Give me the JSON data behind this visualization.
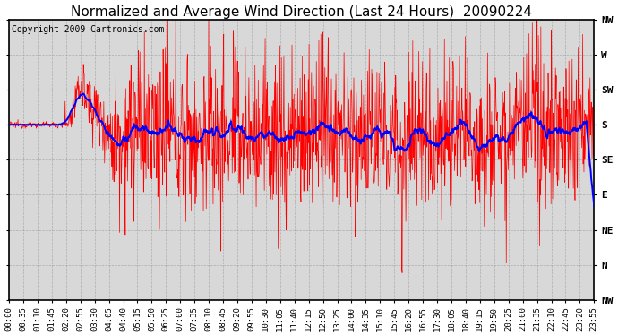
{
  "title": "Normalized and Average Wind Direction (Last 24 Hours)  20090224",
  "copyright_text": "Copyright 2009 Cartronics.com",
  "background_color": "#ffffff",
  "plot_bg_color": "#d8d8d8",
  "grid_color": "#999999",
  "ytick_labels": [
    "NW",
    "W",
    "SW",
    "S",
    "SE",
    "E",
    "NE",
    "N",
    "NW"
  ],
  "ytick_values": [
    360,
    315,
    270,
    225,
    180,
    135,
    90,
    45,
    0
  ],
  "ylim": [
    0,
    360
  ],
  "xtick_labels": [
    "00:00",
    "00:35",
    "01:10",
    "01:45",
    "02:20",
    "02:55",
    "03:30",
    "04:05",
    "04:40",
    "05:15",
    "05:50",
    "06:25",
    "07:00",
    "07:35",
    "08:10",
    "08:45",
    "09:20",
    "09:55",
    "10:30",
    "11:05",
    "11:40",
    "12:15",
    "12:50",
    "13:25",
    "14:00",
    "14:35",
    "15:10",
    "15:45",
    "16:20",
    "16:55",
    "17:30",
    "18:05",
    "18:40",
    "19:15",
    "19:50",
    "20:25",
    "21:00",
    "21:35",
    "22:10",
    "22:45",
    "23:20",
    "23:55"
  ],
  "raw_color": "#ff0000",
  "avg_color": "#0000ff",
  "raw_linewidth": 0.5,
  "avg_linewidth": 1.4,
  "title_fontsize": 11,
  "tick_fontsize": 6.5,
  "copyright_fontsize": 7,
  "figwidth": 6.9,
  "figheight": 3.75,
  "dpi": 100
}
